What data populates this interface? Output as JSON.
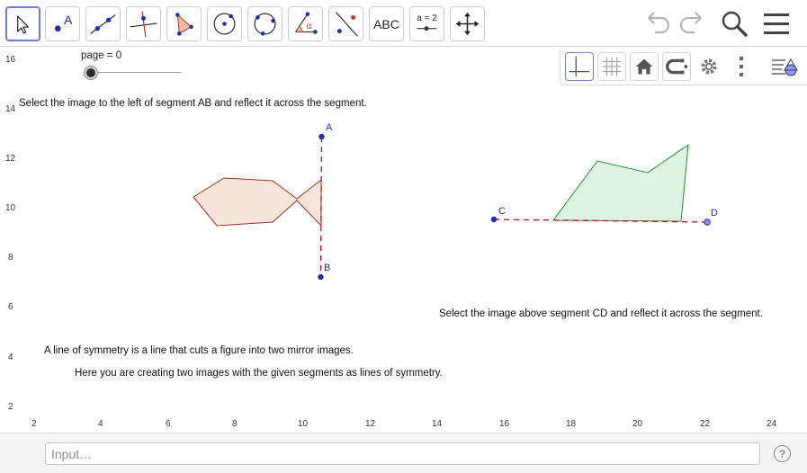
{
  "toolbar": {
    "tools": [
      {
        "name": "move-tool",
        "icon": "arrow-pointer-icon"
      },
      {
        "name": "point-tool",
        "icon": "point-icon",
        "text": "A"
      },
      {
        "name": "line-tool",
        "icon": "line-through-points-icon"
      },
      {
        "name": "perpendicular-line-tool",
        "icon": "perpendicular-line-icon"
      },
      {
        "name": "polygon-tool",
        "icon": "polygon-icon"
      },
      {
        "name": "circle-center-tool",
        "icon": "circle-center-point-icon"
      },
      {
        "name": "circle-three-points-tool",
        "icon": "circle-three-points-icon"
      },
      {
        "name": "angle-tool",
        "icon": "angle-icon",
        "text": "α"
      },
      {
        "name": "reflect-tool",
        "icon": "reflect-about-line-icon"
      },
      {
        "name": "text-tool",
        "icon": "text-icon",
        "text": "ABC"
      },
      {
        "name": "slider-tool",
        "icon": "slider-icon",
        "text": "a = 2"
      },
      {
        "name": "move-graphics-view-tool",
        "icon": "move-cross-arrows-icon"
      }
    ],
    "right_icons": [
      "undo-icon",
      "redo-icon",
      "search-icon",
      "menu-icon"
    ]
  },
  "stylebar": {
    "icons": [
      "axes-icon",
      "grid-icon",
      "home-icon",
      "point-capturing-icon",
      "settings-icon",
      "more-vertical-icon",
      "toggle-stylebar-icon"
    ]
  },
  "graphics": {
    "slider": {
      "label": "page = 0",
      "value": 0
    },
    "texts": {
      "instruction_ab": "Select the image to the left of segment AB and reflect it across the segment.",
      "instruction_cd": "Select the image above segment CD and reflect it across the segment.",
      "definition": "A line of symmetry is a line that cuts a figure into two mirror images.",
      "explanation": "Here you are creating two images with the given segments as lines of symmetry."
    },
    "points": {
      "A": "A",
      "B": "B",
      "C": "C",
      "D": "D"
    },
    "x_ticks": [
      "2",
      "4",
      "6",
      "8",
      "10",
      "12",
      "14",
      "16",
      "18",
      "20",
      "22",
      "24"
    ],
    "y_ticks": [
      "16",
      "14",
      "12",
      "10",
      "8",
      "6",
      "4",
      "2"
    ],
    "colors": {
      "point": "#1d2fb0",
      "segment_ab": "#d0021b",
      "segment_cd": "#d0021b",
      "fish_fill": "#f6e4dd",
      "fish_stroke": "#a0341b",
      "green_fill": "#dff3e3",
      "green_stroke": "#1f8f2b"
    }
  },
  "inputbar": {
    "placeholder": "Input…",
    "help": "?"
  }
}
